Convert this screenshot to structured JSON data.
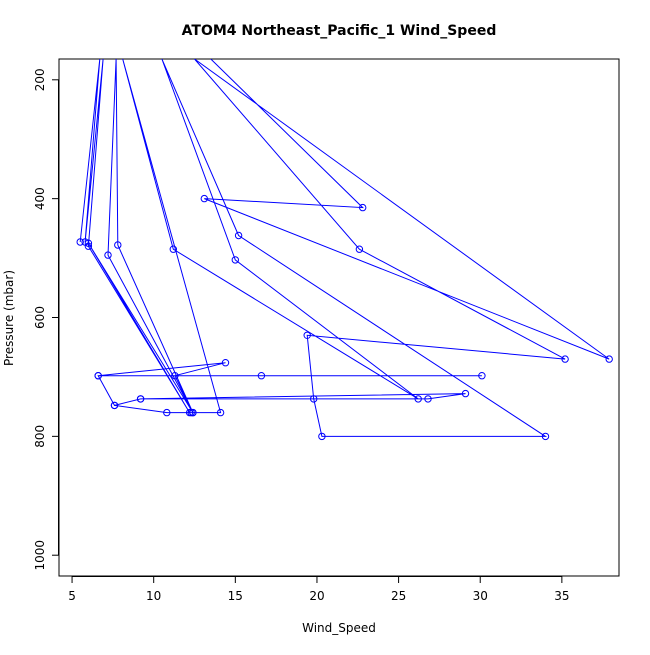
{
  "chart_data": {
    "type": "line",
    "title": "ATOM4 Northeast_Pacific_1 Wind_Speed",
    "xlabel": "Wind_Speed",
    "ylabel": "Pressure (mbar)",
    "xlim": [
      4.2,
      38.5
    ],
    "ylim": [
      1035,
      165
    ],
    "y_inverted": true,
    "grid": false,
    "legend": "none",
    "x_ticks": [
      5,
      10,
      15,
      20,
      25,
      30,
      35
    ],
    "y_ticks": [
      200,
      400,
      600,
      800,
      1000
    ],
    "line_color": "#0000ff",
    "marker": "open-circle",
    "series": [
      {
        "points": [
          {
            "x": 5.5,
            "y": 473
          },
          {
            "x": 6.7,
            "y": 165
          },
          {
            "x": 5.8,
            "y": 473
          },
          {
            "x": 6.9,
            "y": 165
          },
          {
            "x": 6.0,
            "y": 480
          },
          {
            "x": 12.2,
            "y": 760
          },
          {
            "x": 6.0,
            "y": 475
          },
          {
            "x": 12.4,
            "y": 760
          },
          {
            "x": 7.2,
            "y": 495
          },
          {
            "x": 7.7,
            "y": 165
          },
          {
            "x": 7.8,
            "y": 478
          },
          {
            "x": 12.4,
            "y": 760
          },
          {
            "x": 11.3,
            "y": 698
          },
          {
            "x": 14.4,
            "y": 676
          },
          {
            "x": 6.6,
            "y": 698
          },
          {
            "x": 30.1,
            "y": 698
          },
          {
            "x": 16.6,
            "y": 698
          },
          {
            "x": 6.6,
            "y": 698
          },
          {
            "x": 7.6,
            "y": 748
          },
          {
            "x": 9.2,
            "y": 737
          },
          {
            "x": 29.1,
            "y": 728
          },
          {
            "x": 26.8,
            "y": 737
          },
          {
            "x": 9.2,
            "y": 737
          },
          {
            "x": 7.6,
            "y": 748
          },
          {
            "x": 10.8,
            "y": 760
          },
          {
            "x": 12.3,
            "y": 760
          },
          {
            "x": 14.1,
            "y": 760
          },
          {
            "x": 8.1,
            "y": 165
          },
          {
            "x": 11.2,
            "y": 485
          },
          {
            "x": 26.2,
            "y": 737
          },
          {
            "x": 15.0,
            "y": 503
          },
          {
            "x": 10.5,
            "y": 165
          },
          {
            "x": 15.2,
            "y": 462
          },
          {
            "x": 34.0,
            "y": 800
          },
          {
            "x": 20.3,
            "y": 800
          },
          {
            "x": 19.8,
            "y": 737
          },
          {
            "x": 19.4,
            "y": 630
          },
          {
            "x": 35.2,
            "y": 670
          },
          {
            "x": 22.6,
            "y": 485
          },
          {
            "x": 12.5,
            "y": 165
          },
          {
            "x": 37.9,
            "y": 670
          },
          {
            "x": 13.1,
            "y": 400
          },
          {
            "x": 22.8,
            "y": 415
          },
          {
            "x": 13.5,
            "y": 165
          }
        ]
      }
    ]
  }
}
